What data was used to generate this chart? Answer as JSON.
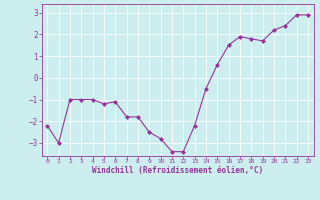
{
  "x": [
    0,
    1,
    2,
    3,
    4,
    5,
    6,
    7,
    8,
    9,
    10,
    11,
    12,
    13,
    14,
    15,
    16,
    17,
    18,
    19,
    20,
    21,
    22,
    23
  ],
  "y": [
    -2.2,
    -3.0,
    -1.0,
    -1.0,
    -1.0,
    -1.2,
    -1.1,
    -1.8,
    -1.8,
    -2.5,
    -2.8,
    -3.4,
    -3.4,
    -2.2,
    -0.5,
    0.6,
    1.5,
    1.9,
    1.8,
    1.7,
    2.2,
    2.4,
    2.9,
    2.9
  ],
  "line_color": "#993399",
  "marker": "D",
  "markersize": 2,
  "linewidth": 0.8,
  "background_color": "#cceeee",
  "grid_color": "#ffffff",
  "xlabel": "Windchill (Refroidissement éolien,°C)",
  "xlabel_color": "#993399",
  "tick_color": "#993399",
  "ylim": [
    -3.6,
    3.4
  ],
  "xlim": [
    -0.5,
    23.5
  ],
  "yticks": [
    -3,
    -2,
    -1,
    0,
    1,
    2,
    3
  ],
  "xticks": [
    0,
    1,
    2,
    3,
    4,
    5,
    6,
    7,
    8,
    9,
    10,
    11,
    12,
    13,
    14,
    15,
    16,
    17,
    18,
    19,
    20,
    21,
    22,
    23
  ],
  "xtick_fontsize": 4.5,
  "ytick_fontsize": 5.5,
  "xlabel_fontsize": 5.5
}
